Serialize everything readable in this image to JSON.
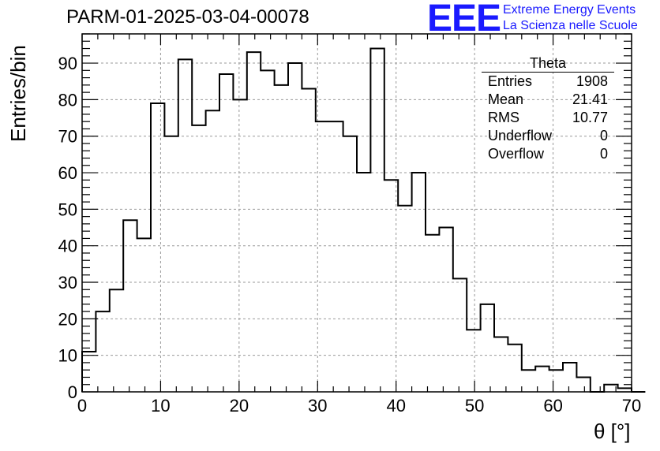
{
  "title": "PARM-01-2025-03-04-00078",
  "logo": {
    "mark": "EEE",
    "line1": "Extreme Energy Events",
    "line2": "La Scienza nelle Scuole",
    "color": "#1a1aff"
  },
  "stats": {
    "name": "Theta",
    "rows": [
      {
        "label": "Entries",
        "value": "1908"
      },
      {
        "label": "Mean",
        "value": "21.41"
      },
      {
        "label": "RMS",
        "value": "10.77"
      },
      {
        "label": "Underflow",
        "value": "0"
      },
      {
        "label": "Overflow",
        "value": "0"
      }
    ]
  },
  "chart_data": {
    "type": "bar",
    "histogram": true,
    "title": "PARM-01-2025-03-04-00078",
    "xlabel": "θ [°]",
    "ylabel": "Entries/bin",
    "xlim": [
      0,
      70
    ],
    "ylim": [
      0,
      98
    ],
    "bin_width": 1.75,
    "bin_start": 0,
    "values": [
      11,
      22,
      28,
      47,
      42,
      79,
      70,
      91,
      73,
      77,
      87,
      80,
      93,
      88,
      84,
      90,
      83,
      74,
      74,
      70,
      60,
      94,
      58,
      51,
      60,
      43,
      45,
      31,
      17,
      24,
      15,
      13,
      6,
      7,
      6,
      8,
      4,
      0,
      2,
      1,
      0
    ],
    "x_ticks": [
      0,
      10,
      20,
      30,
      40,
      50,
      60,
      70
    ],
    "x_tick_labels": [
      "0",
      "10",
      "20",
      "30",
      "40",
      "50",
      "60",
      "70"
    ],
    "y_ticks": [
      0,
      10,
      20,
      30,
      40,
      50,
      60,
      70,
      80,
      90
    ],
    "y_tick_labels": [
      "0",
      "10",
      "20",
      "30",
      "40",
      "50",
      "60",
      "70",
      "80",
      "90"
    ],
    "grid": true,
    "legend": "top-right stats box"
  }
}
